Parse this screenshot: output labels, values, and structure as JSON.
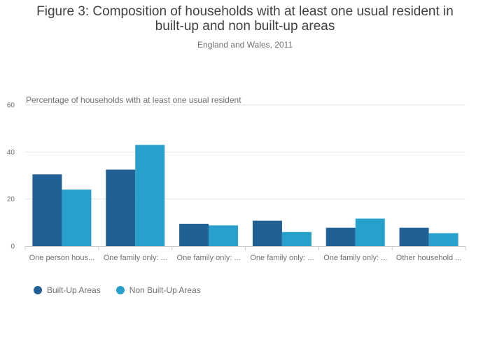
{
  "chart_data": {
    "type": "bar",
    "title_line1": "Figure 3: Composition of households with at least one usual resident in",
    "title_line2": "built-up and non built-up areas",
    "subtitle": "England and Wales, 2011",
    "ylabel": "Percentage of households with at least one usual resident",
    "xlabel": "",
    "ylim": [
      0,
      60
    ],
    "yticks": [
      0,
      20,
      40,
      60
    ],
    "grid": true,
    "legend_position": "bottom-left",
    "categories": [
      "One person hous...",
      "One family only: ...",
      "One family only: ...",
      "One family only: ...",
      "One family only: ...",
      "Other household ..."
    ],
    "series": [
      {
        "name": "Built-Up Areas",
        "color": "#206095",
        "values": [
          30.5,
          32.5,
          9.5,
          10.8,
          7.8,
          7.8
        ]
      },
      {
        "name": "Non Built-Up Areas",
        "color": "#27a0cc",
        "values": [
          24,
          43,
          8.8,
          6,
          11.7,
          5.5
        ]
      }
    ]
  }
}
